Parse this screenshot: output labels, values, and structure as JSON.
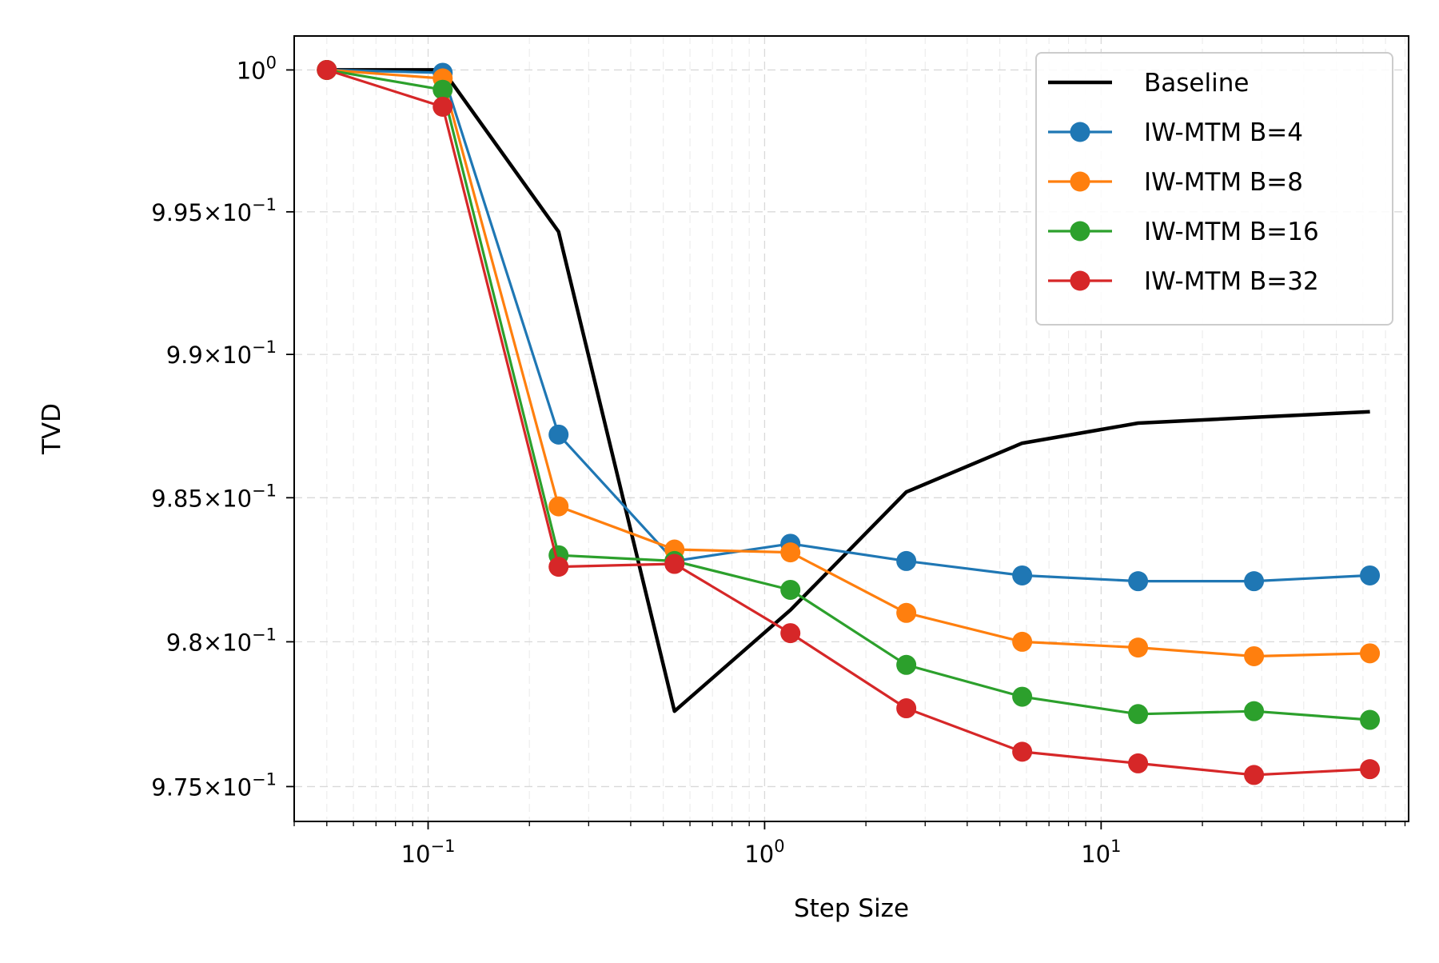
{
  "chart_data": {
    "type": "line",
    "xlabel": "Step Size",
    "ylabel": "TVD",
    "xscale": "log",
    "yscale": "log",
    "xlim": [
      0.04,
      82
    ],
    "ylim": [
      0.9738,
      1.0012
    ],
    "x_ticks": [
      {
        "value": 0.1,
        "base": "10",
        "exp": "−1"
      },
      {
        "value": 1,
        "base": "10",
        "exp": "0"
      },
      {
        "value": 10,
        "base": "10",
        "exp": "1"
      }
    ],
    "y_ticks": [
      {
        "value": 1.0,
        "mantissa": "",
        "exp": "0"
      },
      {
        "value": 0.995,
        "mantissa": "9.95",
        "exp": "−1"
      },
      {
        "value": 0.99,
        "mantissa": "9.9",
        "exp": "−1"
      },
      {
        "value": 0.985,
        "mantissa": "9.85",
        "exp": "−1"
      },
      {
        "value": 0.98,
        "mantissa": "9.8",
        "exp": "−1"
      },
      {
        "value": 0.975,
        "mantissa": "9.75",
        "exp": "−1"
      }
    ],
    "grid": true,
    "legend_position": "top-right",
    "x": [
      0.05,
      0.1105,
      0.2442,
      0.5398,
      1.1931,
      2.6367,
      5.8275,
      12.879,
      28.465,
      62.91
    ],
    "series": [
      {
        "name": "Baseline",
        "color": "#000000",
        "marker": "none",
        "values": [
          1.0,
          1.0,
          0.9943,
          0.9776,
          0.9811,
          0.9852,
          0.9869,
          0.9876,
          0.9878,
          0.988
        ]
      },
      {
        "name": "IW-MTM B=4",
        "color": "#1f77b4",
        "marker": "circle",
        "values": [
          1.0,
          0.9999,
          0.9872,
          0.9828,
          0.9834,
          0.9828,
          0.9823,
          0.9821,
          0.9821,
          0.9823
        ]
      },
      {
        "name": "IW-MTM B=8",
        "color": "#ff7f0e",
        "marker": "circle",
        "values": [
          1.0,
          0.9997,
          0.9847,
          0.9832,
          0.9831,
          0.981,
          0.98,
          0.9798,
          0.9795,
          0.9796
        ]
      },
      {
        "name": "IW-MTM B=16",
        "color": "#2ca02c",
        "marker": "circle",
        "values": [
          1.0,
          0.9993,
          0.983,
          0.9828,
          0.9818,
          0.9792,
          0.9781,
          0.9775,
          0.9776,
          0.9773
        ]
      },
      {
        "name": "IW-MTM B=32",
        "color": "#d62728",
        "marker": "circle",
        "values": [
          1.0,
          0.9987,
          0.9826,
          0.9827,
          0.9803,
          0.9777,
          0.9762,
          0.9758,
          0.9754,
          0.9756
        ]
      }
    ]
  }
}
